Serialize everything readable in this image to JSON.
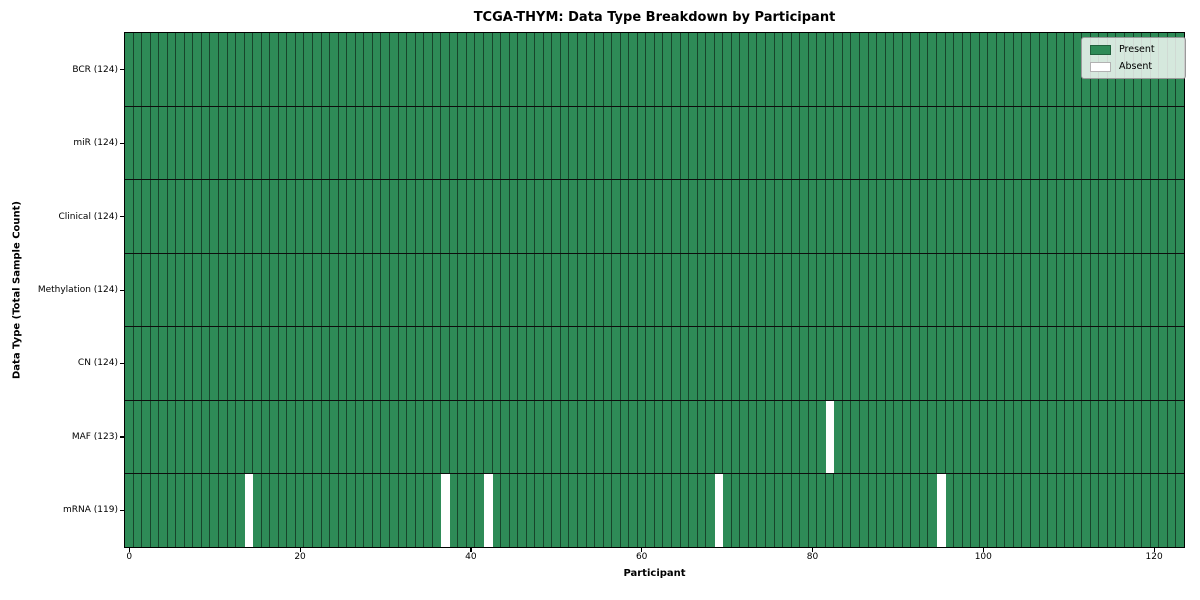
{
  "chart_data": {
    "type": "heatmap",
    "title": "TCGA-THYM: Data Type Breakdown by Participant",
    "xlabel": "Participant",
    "ylabel": "Data Type (Total Sample Count)",
    "n_participants": 124,
    "x_ticks": [
      0,
      20,
      40,
      60,
      80,
      100,
      120
    ],
    "xlim": [
      -0.5,
      123.5
    ],
    "grid": "cell-borders",
    "legend_position": "upper-right",
    "rows": [
      {
        "label": "BCR (124)",
        "data_type": "BCR",
        "present_count": 124,
        "absent_participants": []
      },
      {
        "label": "miR (124)",
        "data_type": "miR",
        "present_count": 124,
        "absent_participants": []
      },
      {
        "label": "Clinical (124)",
        "data_type": "Clinical",
        "present_count": 124,
        "absent_participants": []
      },
      {
        "label": "Methylation (124)",
        "data_type": "Methylation",
        "present_count": 124,
        "absent_participants": []
      },
      {
        "label": "CN (124)",
        "data_type": "CN",
        "present_count": 124,
        "absent_participants": []
      },
      {
        "label": "MAF (123)",
        "data_type": "MAF",
        "present_count": 123,
        "absent_participants": [
          82
        ]
      },
      {
        "label": "mRNA (119)",
        "data_type": "mRNA",
        "present_count": 119,
        "absent_participants": [
          14,
          37,
          42,
          69,
          95
        ]
      }
    ],
    "legend": [
      {
        "label": "Present",
        "color": "#2e8b57"
      },
      {
        "label": "Absent",
        "color": "#ffffff"
      }
    ],
    "colors": {
      "present": "#2e8b57",
      "absent": "#ffffff",
      "grid_line": "rgba(0,0,0,0.5)",
      "row_separator": "#0d0d0d",
      "frame": "#000000"
    }
  }
}
